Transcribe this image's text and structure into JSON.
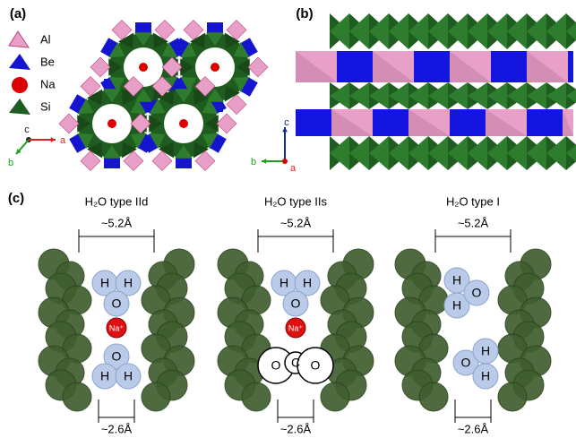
{
  "panel_a": {
    "label": "(a)",
    "legend": [
      "Al",
      "Be",
      "Na",
      "Si"
    ],
    "axes": [
      "c",
      "a",
      "b"
    ]
  },
  "panel_b": {
    "label": "(b)",
    "axes": [
      "c",
      "b",
      "a"
    ]
  },
  "panel_c": {
    "label": "(c)",
    "diagrams": [
      {
        "title": "H₂O type IId",
        "top_width": "~5.2Å",
        "bottom_width": "~2.6Å",
        "atoms": [
          "H",
          "H",
          "O",
          "Na⁺",
          "O",
          "H",
          "H"
        ]
      },
      {
        "title": "H₂O type IIs",
        "top_width": "~5.2Å",
        "bottom_width": "~2.6Å",
        "atoms": [
          "H",
          "H",
          "O",
          "Na⁺",
          "O",
          "C",
          "O"
        ]
      },
      {
        "title": "H₂O type I",
        "top_width": "~5.2Å",
        "bottom_width": "~2.6Å",
        "atoms": [
          "H",
          "H",
          "O",
          "O",
          "H",
          "H"
        ]
      }
    ]
  }
}
